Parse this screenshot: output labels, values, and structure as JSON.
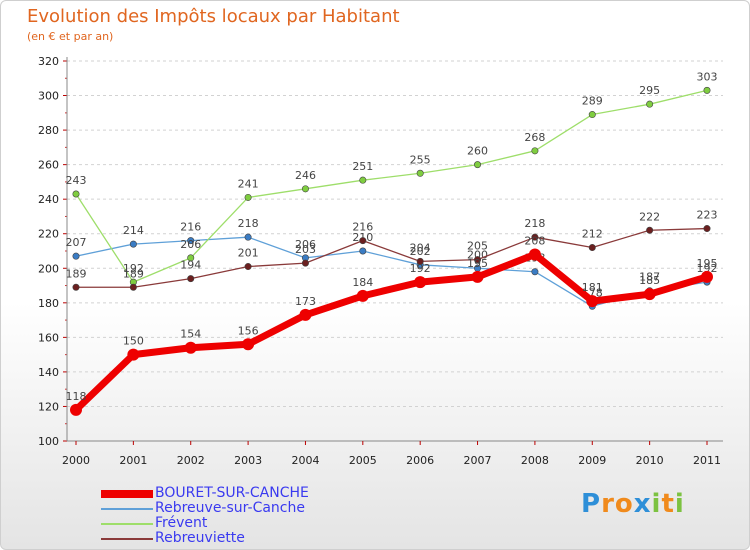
{
  "title": "Evolution des Impôts locaux par Habitant",
  "subtitle": "(en € et par an)",
  "brand": "Proxiti",
  "chart_data": {
    "type": "line",
    "title": "Evolution des Impôts locaux par Habitant",
    "subtitle": "(en € et par an)",
    "xlabel": "",
    "ylabel": "",
    "categories": [
      "2000",
      "2001",
      "2002",
      "2003",
      "2004",
      "2005",
      "2006",
      "2007",
      "2008",
      "2009",
      "2010",
      "2011"
    ],
    "ylim": [
      100,
      320
    ],
    "yticks": [
      100,
      120,
      140,
      160,
      180,
      200,
      220,
      240,
      260,
      280,
      300,
      320
    ],
    "grid": "horizontal",
    "legend": "bottom-left",
    "series": [
      {
        "name": "Rebreuve-sur-Canche",
        "color": "#5fa0d8",
        "marker": "#3a7cc4",
        "width": 1.3,
        "values": [
          207,
          214,
          216,
          218,
          206,
          210,
          202,
          200,
          198,
          178,
          187,
          192
        ]
      },
      {
        "name": "Frévent",
        "color": "#9ede6a",
        "marker": "#7fcd40",
        "width": 1.3,
        "values": [
          243,
          192,
          206,
          241,
          246,
          251,
          255,
          260,
          268,
          289,
          295,
          303
        ]
      },
      {
        "name": "Rebreuviette",
        "color": "#8a3a3a",
        "marker": "#6b1f1f",
        "width": 1.3,
        "values": [
          189,
          189,
          194,
          201,
          203,
          216,
          204,
          205,
          218,
          212,
          222,
          223
        ]
      },
      {
        "name": "BOURET-SUR-CANCHE",
        "color": "#ee0000",
        "marker": "#ee0000",
        "width": 7,
        "values": [
          118,
          150,
          154,
          156,
          173,
          184,
          192,
          195,
          208,
          181,
          185,
          195
        ]
      }
    ],
    "legend_order": [
      "BOURET-SUR-CANCHE",
      "Rebreuve-sur-Canche",
      "Frévent",
      "Rebreuviette"
    ]
  }
}
